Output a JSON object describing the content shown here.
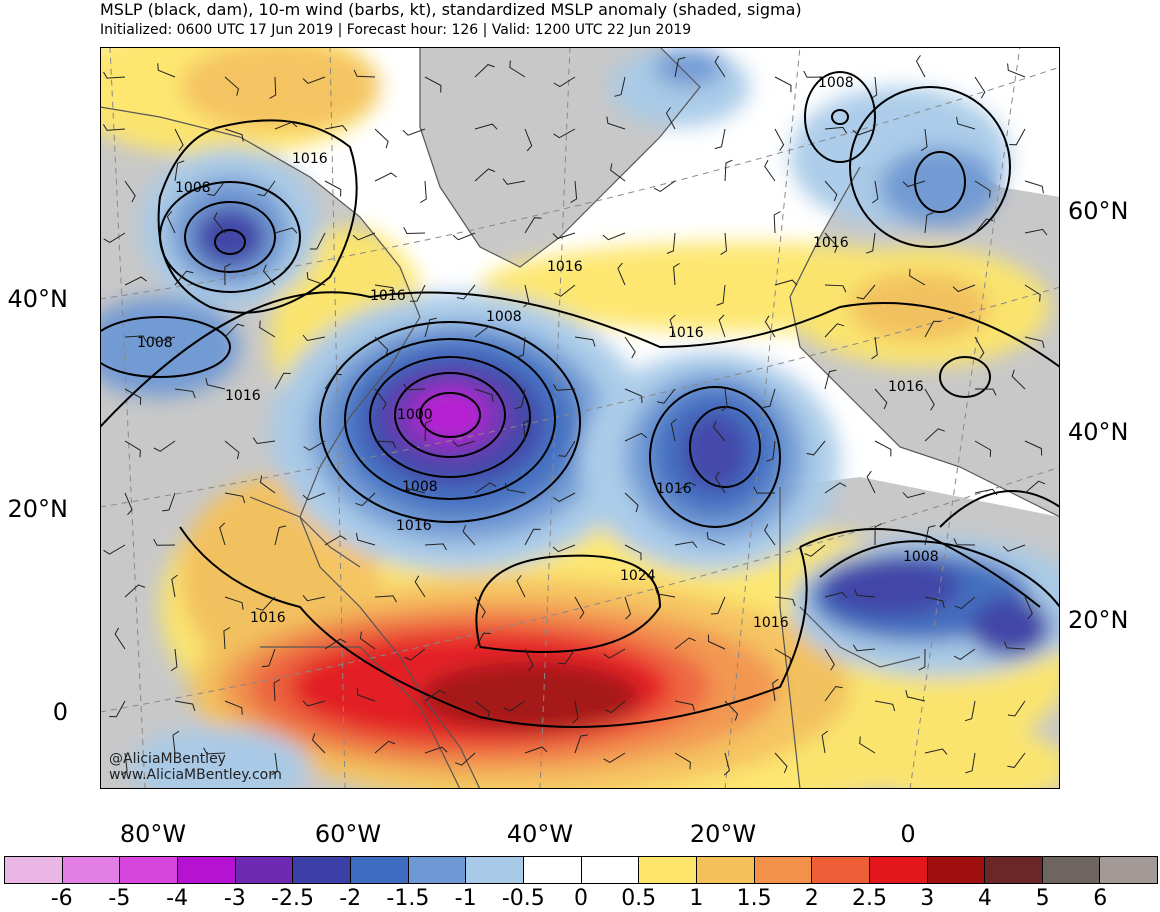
{
  "header": {
    "title": "MSLP (black, dam), 10-m wind (barbs, kt), standardized MSLP anomaly (shaded, sigma)",
    "subtitle": "Initialized: 0600 UTC 17 Jun 2019 | Forecast hour: 126 | Valid: 1200 UTC 22 Jun 2019"
  },
  "axes": {
    "left_lat_labels": [
      "40°N",
      "20°N",
      "0"
    ],
    "right_lat_labels": [
      "60°N",
      "40°N",
      "20°N"
    ],
    "bottom_lon_labels": [
      "80°W",
      "60°W",
      "40°W",
      "20°W",
      "0"
    ]
  },
  "credit": {
    "handle": "@AliciaMBentley",
    "website": "www.AliciaMBentley.com"
  },
  "isobar_labels": [
    "1008",
    "1016",
    "1016",
    "1008",
    "1016",
    "1016",
    "1008",
    "1000",
    "1008",
    "1016",
    "1016",
    "1016",
    "1024",
    "1016",
    "1016",
    "1008",
    "1016",
    "1008",
    "1016"
  ],
  "colorbar": {
    "ticks": [
      "-6",
      "-5",
      "-4",
      "-3",
      "-2.5",
      "-2",
      "-1.5",
      "-1",
      "-0.5",
      "0",
      "0.5",
      "1",
      "1.5",
      "2",
      "2.5",
      "3",
      "4",
      "5",
      "6"
    ],
    "colors": [
      "#e9b6e6",
      "#e37fe4",
      "#d646dd",
      "#b512d2",
      "#6f2ab4",
      "#3b3fa6",
      "#3d6cc0",
      "#6e99d4",
      "#a8cae8",
      "#ffffff",
      "#ffffff",
      "#fde66b",
      "#f5c15a",
      "#f2924a",
      "#ee5f38",
      "#e4171c",
      "#a10e0e",
      "#6b2727",
      "#6e6460",
      "#a39a97"
    ]
  },
  "colors": {
    "land_gray": "#c8c8c8",
    "ocean_white": "#ffffff",
    "coast": "#555555"
  }
}
